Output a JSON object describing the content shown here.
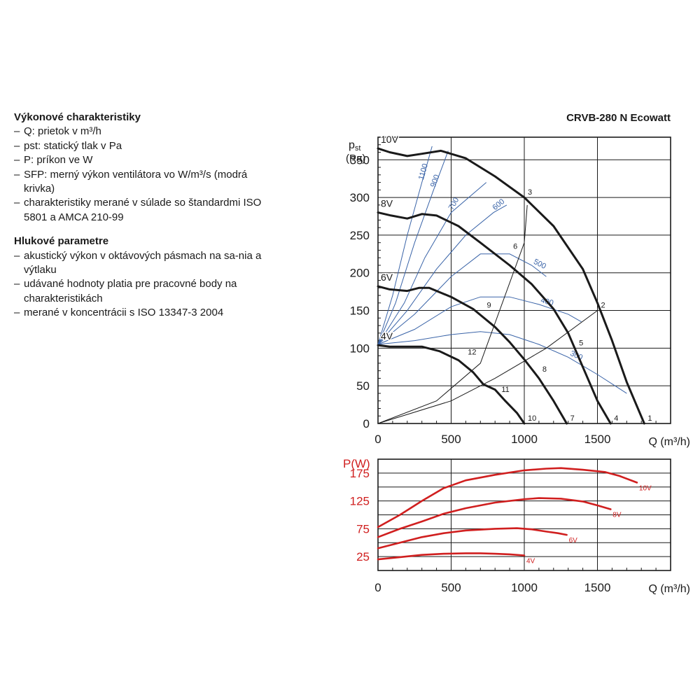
{
  "product_title": "CRVB-280 N Ecowatt",
  "sections": [
    {
      "heading": "Výkonové charakteristiky",
      "items": [
        {
          "dash": "–",
          "text": "Q: prietok v m³/h"
        },
        {
          "dash": "–",
          "text": "pst: statický tlak v Pa"
        },
        {
          "dash": "–",
          "text": "P: príkon ve W"
        },
        {
          "dash": "–",
          "text": "SFP: merný výkon ventilátora vo W/m³/s (modrá krivka)"
        },
        {
          "dash": "–",
          "text": "charakteristiky merané v súlade so štandardmi ISO 5801 a AMCA 210-99"
        }
      ]
    },
    {
      "heading": "Hlukové parametre",
      "items": [
        {
          "dash": "–",
          "text": "akustický výkon v oktávových pásmach na sa-nia a výtlaku"
        },
        {
          "dash": "–",
          "text": "udávané hodnoty platia pre pracovné body na charakteristikách"
        },
        {
          "dash": "–",
          "text": "merané v koncentrácii s ISO 13347-3 2004"
        }
      ]
    }
  ],
  "chart_data": [
    {
      "type": "line",
      "title": "",
      "ylabel": "pst",
      "ylabel_unit": "(Pa)",
      "xlabel": "Q (m³/h)",
      "xlim": [
        0,
        2000
      ],
      "ylim": [
        0,
        380
      ],
      "xticks": [
        0,
        500,
        1000,
        1500
      ],
      "yticks": [
        0,
        50,
        100,
        150,
        200,
        250,
        300,
        350
      ],
      "grid": true,
      "colors": {
        "fan": "#1a1a1a",
        "sfp": "#3a64a8",
        "system": "#1a1a1a"
      },
      "series": [
        {
          "name": "10V",
          "points": [
            [
              0,
              365
            ],
            [
              80,
              360
            ],
            [
              200,
              355
            ],
            [
              300,
              358
            ],
            [
              430,
              362
            ],
            [
              600,
              352
            ],
            [
              800,
              328
            ],
            [
              1000,
              300
            ],
            [
              1200,
              262
            ],
            [
              1400,
              205
            ],
            [
              1500,
              160
            ],
            [
              1600,
              110
            ],
            [
              1700,
              55
            ],
            [
              1820,
              0
            ]
          ]
        },
        {
          "name": "8V",
          "points": [
            [
              0,
              280
            ],
            [
              90,
              276
            ],
            [
              200,
              272
            ],
            [
              300,
              278
            ],
            [
              400,
              276
            ],
            [
              550,
              262
            ],
            [
              700,
              240
            ],
            [
              900,
              210
            ],
            [
              1050,
              185
            ],
            [
              1200,
              152
            ],
            [
              1300,
              120
            ],
            [
              1400,
              75
            ],
            [
              1500,
              30
            ],
            [
              1590,
              0
            ]
          ]
        },
        {
          "name": "6V",
          "points": [
            [
              0,
              182
            ],
            [
              80,
              178
            ],
            [
              200,
              176
            ],
            [
              280,
              180
            ],
            [
              350,
              180
            ],
            [
              500,
              168
            ],
            [
              650,
              152
            ],
            [
              800,
              128
            ],
            [
              900,
              108
            ],
            [
              1000,
              85
            ],
            [
              1100,
              60
            ],
            [
              1200,
              30
            ],
            [
              1290,
              0
            ]
          ]
        },
        {
          "name": "4V",
          "points": [
            [
              0,
              104
            ],
            [
              80,
              102
            ],
            [
              170,
              102
            ],
            [
              300,
              102
            ],
            [
              420,
              96
            ],
            [
              550,
              84
            ],
            [
              650,
              68
            ],
            [
              720,
              52
            ],
            [
              800,
              45
            ],
            [
              870,
              30
            ],
            [
              950,
              14
            ],
            [
              1000,
              0
            ]
          ]
        }
      ],
      "sfp_curves": [
        {
          "label": "1100",
          "points": [
            [
              0,
              105
            ],
            [
              100,
              170
            ],
            [
              200,
              250
            ],
            [
              300,
              320
            ],
            [
              370,
              368
            ]
          ]
        },
        {
          "label": "900",
          "points": [
            [
              0,
              105
            ],
            [
              120,
              160
            ],
            [
              250,
              240
            ],
            [
              380,
              310
            ],
            [
              480,
              362
            ]
          ]
        },
        {
          "label": "700",
          "points": [
            [
              0,
              105
            ],
            [
              180,
              160
            ],
            [
              320,
              220
            ],
            [
              500,
              280
            ],
            [
              740,
              320
            ]
          ]
        },
        {
          "label": "600",
          "points": [
            [
              0,
              105
            ],
            [
              200,
              150
            ],
            [
              400,
              205
            ],
            [
              600,
              250
            ],
            [
              790,
              280
            ],
            [
              880,
              290
            ]
          ]
        },
        {
          "label": "500",
          "points": [
            [
              0,
              105
            ],
            [
              250,
              145
            ],
            [
              500,
              195
            ],
            [
              700,
              225
            ],
            [
              900,
              225
            ],
            [
              1050,
              210
            ],
            [
              1150,
              195
            ]
          ]
        },
        {
          "label": "400",
          "points": [
            [
              0,
              105
            ],
            [
              250,
              125
            ],
            [
              500,
              155
            ],
            [
              700,
              168
            ],
            [
              900,
              168
            ],
            [
              1100,
              158
            ],
            [
              1300,
              145
            ],
            [
              1390,
              135
            ]
          ]
        },
        {
          "label": "300",
          "points": [
            [
              0,
              105
            ],
            [
              250,
              110
            ],
            [
              500,
              118
            ],
            [
              700,
              122
            ],
            [
              900,
              118
            ],
            [
              1100,
              105
            ],
            [
              1300,
              88
            ],
            [
              1500,
              65
            ],
            [
              1700,
              40
            ]
          ]
        }
      ],
      "system_curves": [
        {
          "points": [
            [
              0,
              0
            ],
            [
              400,
              30
            ],
            [
              700,
              80
            ],
            [
              1000,
              240
            ],
            [
              1020,
              290
            ]
          ]
        },
        {
          "points": [
            [
              0,
              0
            ],
            [
              500,
              30
            ],
            [
              800,
              60
            ],
            [
              1150,
              100
            ],
            [
              1500,
              150
            ]
          ]
        }
      ],
      "operating_points": [
        {
          "label": "1",
          "x": 1820,
          "y": 0
        },
        {
          "label": "2",
          "x": 1500,
          "y": 150
        },
        {
          "label": "3",
          "x": 1000,
          "y": 300
        },
        {
          "label": "4",
          "x": 1590,
          "y": 0
        },
        {
          "label": "5",
          "x": 1350,
          "y": 100
        },
        {
          "label": "6",
          "x": 900,
          "y": 228
        },
        {
          "label": "7",
          "x": 1290,
          "y": 0
        },
        {
          "label": "8",
          "x": 1100,
          "y": 65
        },
        {
          "label": "9",
          "x": 720,
          "y": 150
        },
        {
          "label": "10",
          "x": 1000,
          "y": 0
        },
        {
          "label": "11",
          "x": 820,
          "y": 38
        },
        {
          "label": "12",
          "x": 590,
          "y": 88
        }
      ],
      "series_labels": [
        "10V",
        "8V",
        "6V",
        "4V"
      ]
    },
    {
      "type": "line",
      "title": "",
      "ylabel": "P(W)",
      "xlabel": "Q (m³/h)",
      "xlim": [
        0,
        2000
      ],
      "ylim": [
        0,
        200
      ],
      "xticks": [
        0,
        500,
        1000,
        1500
      ],
      "yticks": [
        25,
        75,
        125,
        175
      ],
      "grid": true,
      "colors": {
        "power": "#d01f1f"
      },
      "series": [
        {
          "name": "10V",
          "points": [
            [
              0,
              78
            ],
            [
              150,
              100
            ],
            [
              300,
              125
            ],
            [
              450,
              148
            ],
            [
              600,
              162
            ],
            [
              800,
              172
            ],
            [
              1000,
              180
            ],
            [
              1150,
              183
            ],
            [
              1250,
              184
            ],
            [
              1400,
              181
            ],
            [
              1550,
              177
            ],
            [
              1650,
              170
            ],
            [
              1770,
              158
            ]
          ]
        },
        {
          "name": "8V",
          "points": [
            [
              0,
              60
            ],
            [
              150,
              75
            ],
            [
              300,
              88
            ],
            [
              450,
              102
            ],
            [
              600,
              112
            ],
            [
              800,
              122
            ],
            [
              1000,
              128
            ],
            [
              1100,
              130
            ],
            [
              1250,
              129
            ],
            [
              1400,
              124
            ],
            [
              1500,
              117
            ],
            [
              1590,
              110
            ]
          ]
        },
        {
          "name": "6V",
          "points": [
            [
              0,
              40
            ],
            [
              150,
              50
            ],
            [
              300,
              60
            ],
            [
              450,
              67
            ],
            [
              600,
              72
            ],
            [
              800,
              75
            ],
            [
              950,
              76
            ],
            [
              1050,
              74
            ],
            [
              1150,
              70
            ],
            [
              1230,
              67
            ],
            [
              1290,
              64
            ]
          ]
        },
        {
          "name": "4V",
          "points": [
            [
              0,
              20
            ],
            [
              150,
              24
            ],
            [
              300,
              28
            ],
            [
              450,
              30
            ],
            [
              600,
              31
            ],
            [
              700,
              31
            ],
            [
              800,
              30
            ],
            [
              900,
              29
            ],
            [
              1000,
              27
            ]
          ]
        }
      ]
    }
  ]
}
